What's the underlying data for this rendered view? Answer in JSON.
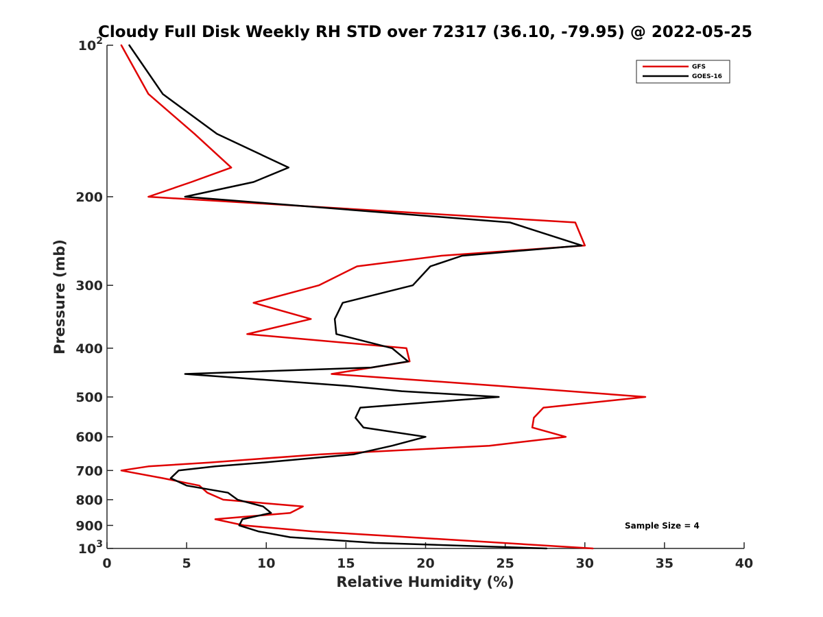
{
  "chart_data": {
    "type": "line",
    "title": "Cloudy Full Disk Weekly RH STD over 72317 (36.10, -79.95) @ 2022-05-25",
    "xlabel": "Relative Humidity (%)",
    "ylabel": "Pressure (mb)",
    "xlim": [
      0,
      40
    ],
    "ylim": [
      100,
      1000
    ],
    "y_scale": "log",
    "y_reversed": true,
    "grid": false,
    "legend_position": "top-right",
    "x_ticks": [
      "0",
      "5",
      "10",
      "15",
      "20",
      "25",
      "30",
      "35",
      "40"
    ],
    "y_ticks": [
      {
        "value": 100,
        "base": "10",
        "exp": "2"
      },
      {
        "value": 200,
        "label": "200"
      },
      {
        "value": 300,
        "label": "300"
      },
      {
        "value": 400,
        "label": "400"
      },
      {
        "value": 500,
        "label": "500"
      },
      {
        "value": 600,
        "label": "600"
      },
      {
        "value": 700,
        "label": "700"
      },
      {
        "value": 800,
        "label": "800"
      },
      {
        "value": 900,
        "label": "900"
      },
      {
        "value": 1000,
        "base": "10",
        "exp": "3"
      }
    ],
    "series": [
      {
        "name": "GFS",
        "color": "#e00000",
        "points": [
          [
            0.9,
            100
          ],
          [
            2.6,
            125
          ],
          [
            5.5,
            150
          ],
          [
            7.8,
            175
          ],
          [
            5.3,
            187
          ],
          [
            2.6,
            200
          ],
          [
            29.4,
            225
          ],
          [
            30.0,
            250
          ],
          [
            21.0,
            262
          ],
          [
            15.7,
            275
          ],
          [
            13.3,
            300
          ],
          [
            9.2,
            325
          ],
          [
            12.8,
            350
          ],
          [
            8.8,
            375
          ],
          [
            18.8,
            400
          ],
          [
            19.0,
            425
          ],
          [
            14.1,
            450
          ],
          [
            24.5,
            475
          ],
          [
            33.8,
            500
          ],
          [
            27.4,
            525
          ],
          [
            26.8,
            550
          ],
          [
            26.7,
            575
          ],
          [
            28.8,
            600
          ],
          [
            24.0,
            625
          ],
          [
            13.4,
            650
          ],
          [
            6.4,
            675
          ],
          [
            2.6,
            687
          ],
          [
            0.9,
            700
          ],
          [
            3.5,
            725
          ],
          [
            5.8,
            750
          ],
          [
            6.3,
            775
          ],
          [
            7.3,
            800
          ],
          [
            12.3,
            825
          ],
          [
            11.5,
            850
          ],
          [
            6.8,
            875
          ],
          [
            8.6,
            900
          ],
          [
            12.9,
            925
          ],
          [
            19.0,
            950
          ],
          [
            30.5,
            1000
          ]
        ]
      },
      {
        "name": "GOES-16",
        "color": "#000000",
        "points": [
          [
            1.4,
            100
          ],
          [
            3.5,
            125
          ],
          [
            6.9,
            150
          ],
          [
            11.4,
            175
          ],
          [
            9.2,
            187
          ],
          [
            4.9,
            200
          ],
          [
            25.3,
            225
          ],
          [
            29.8,
            250
          ],
          [
            22.3,
            262
          ],
          [
            20.3,
            275
          ],
          [
            19.2,
            300
          ],
          [
            14.8,
            325
          ],
          [
            14.3,
            350
          ],
          [
            14.4,
            375
          ],
          [
            17.9,
            400
          ],
          [
            18.9,
            425
          ],
          [
            16.6,
            437
          ],
          [
            4.9,
            450
          ],
          [
            15.0,
            475
          ],
          [
            18.5,
            487
          ],
          [
            24.6,
            500
          ],
          [
            15.9,
            525
          ],
          [
            15.6,
            550
          ],
          [
            16.1,
            575
          ],
          [
            20.0,
            600
          ],
          [
            17.9,
            625
          ],
          [
            15.5,
            650
          ],
          [
            9.8,
            675
          ],
          [
            6.8,
            687
          ],
          [
            4.5,
            700
          ],
          [
            4.0,
            725
          ],
          [
            5.0,
            750
          ],
          [
            7.6,
            775
          ],
          [
            8.2,
            800
          ],
          [
            9.8,
            825
          ],
          [
            10.3,
            850
          ],
          [
            8.5,
            875
          ],
          [
            8.3,
            900
          ],
          [
            9.5,
            925
          ],
          [
            11.5,
            950
          ],
          [
            16.8,
            975
          ],
          [
            27.6,
            1000
          ]
        ]
      }
    ],
    "annotation": "Sample Size = 4"
  }
}
